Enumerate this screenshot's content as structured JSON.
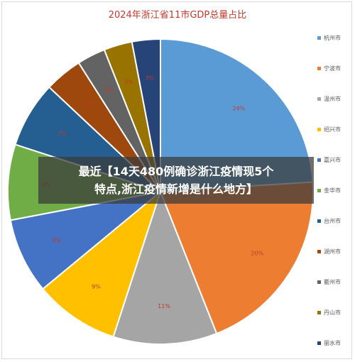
{
  "chart_data": {
    "type": "pie",
    "title": "2024年浙江省11市GDP总量占比",
    "categories": [
      "杭州市",
      "宁波市",
      "温州市",
      "绍兴市",
      "嘉兴市",
      "金华市",
      "台州市",
      "湖州市",
      "衢州市",
      "丹山市",
      "丽水市"
    ],
    "values": [
      24,
      20,
      11,
      9,
      8,
      8,
      7,
      4,
      3,
      3,
      3
    ],
    "labels": [
      "24%",
      "20%",
      "11%",
      "9%",
      "8%",
      "8%",
      "7%",
      "4%",
      "3%",
      "3%",
      "3%"
    ],
    "colors": [
      "#5b9bd5",
      "#ed7d31",
      "#a5a5a5",
      "#ffc000",
      "#4472c4",
      "#70ad47",
      "#255e91",
      "#9e480e",
      "#636363",
      "#997300",
      "#264478"
    ],
    "legend_position": "right"
  },
  "overlay": {
    "line1": "最近【14天480例确诊浙江疫情现5个",
    "line2": "特点,浙江疫情新增是什么地方】"
  }
}
